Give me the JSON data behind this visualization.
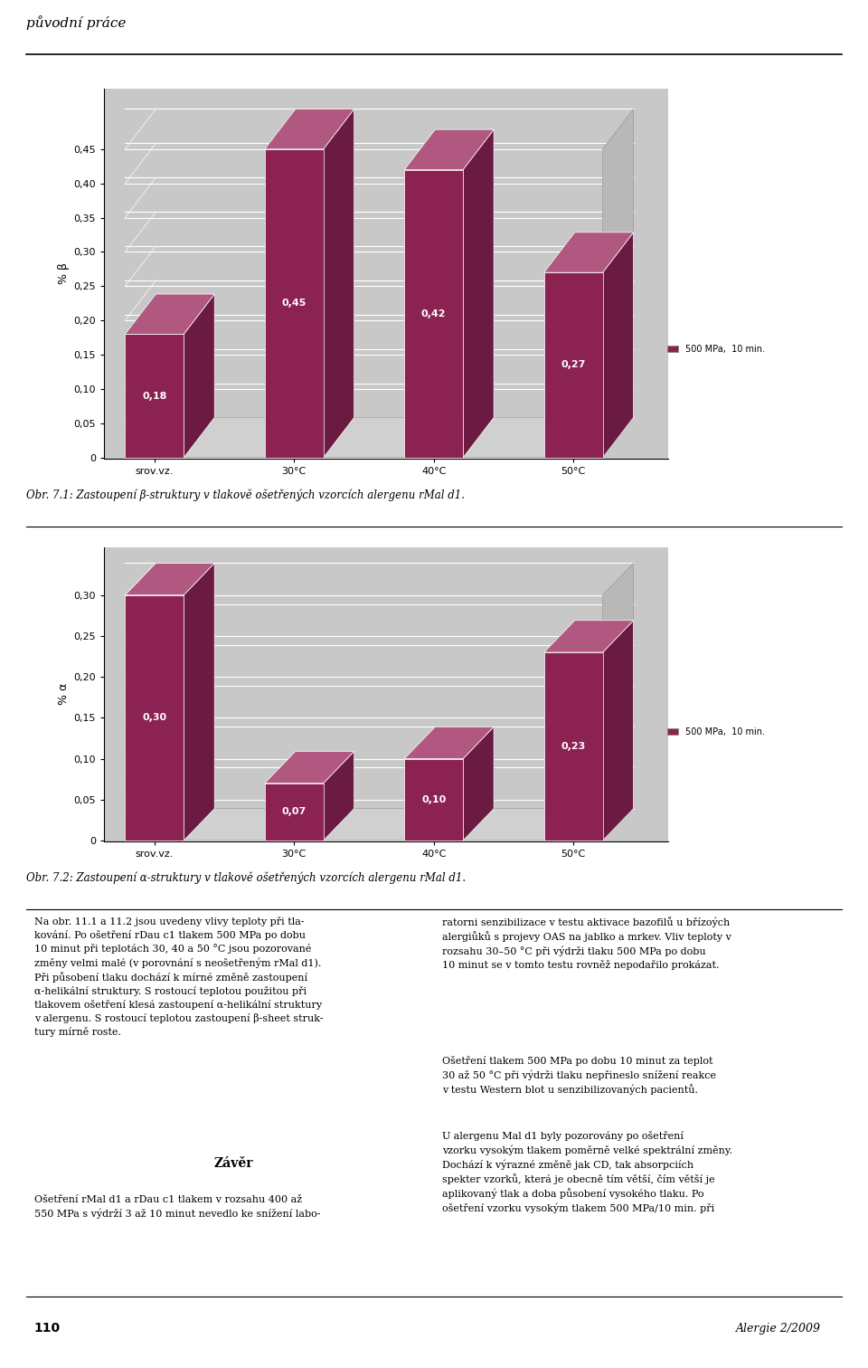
{
  "chart1": {
    "ylabel": "% β",
    "values": [
      0.18,
      0.45,
      0.42,
      0.27
    ],
    "categories": [
      "srov.vz.",
      "30°C",
      "40°C",
      "50°C"
    ],
    "ylim_max": 0.45,
    "yticks": [
      0,
      0.05,
      0.1,
      0.15,
      0.2,
      0.25,
      0.3,
      0.35,
      0.4,
      0.45
    ],
    "caption": "Obr. 7.1: Zastoupení β-struktury v tlakově ošetřených vzorcích alergenu rMal d1."
  },
  "chart2": {
    "ylabel": "% α",
    "values": [
      0.3,
      0.07,
      0.1,
      0.23
    ],
    "categories": [
      "srov.vz.",
      "30°C",
      "40°C",
      "50°C"
    ],
    "ylim_max": 0.3,
    "yticks": [
      0,
      0.05,
      0.1,
      0.15,
      0.2,
      0.25,
      0.3
    ],
    "caption": "Obr. 7.2: Zastoupení α-struktury v tlakově ošetřených vzorcích alergenu rMal d1."
  },
  "bar_color_front": "#8B2252",
  "bar_color_top": "#B05880",
  "bar_color_side": "#6B1A42",
  "wall_color": "#C8C8C8",
  "grid_line_color": "#AAAAAA",
  "legend_label": "500 MPa,  10 min.",
  "header_text": "původní práce",
  "footer_page": "110",
  "footer_journal": "Alergie 2/2009",
  "text_left1": "Na obr. 11.1 a 11.2 jsou uvedeny vlivy teploty při tla-\nkování. Po ošetření rDau c1 tlakem 500 MPa po dobu\n10 minut při teplotách 30, 40 a 50 °C jsou pozorované\nzměny velmi malé (v porovnání s neošetřeným rMal d1).\nPři působení tlaku dochází k mírné změně zastoupení\nα-helikální struktury. S rostoucí teplotou použitou při\ntlakovem ošetření klesá zastoupení α-helikální struktury\nv alergenu. S rostoucí teplotou zastoupení β-sheet struk-\ntury mírně roste.",
  "zaver_title": "Závěr",
  "zaver_text": "Ošetření rMal d1 a rDau c1 tlakem v rozsahu 400 až\n550 MPa s výdrží 3 až 10 minut nevedlo ke snížení labo-",
  "text_right1": "ratorni senzibilizace v testu aktivace bazofilů u břízoých\nalergiůků s projevy OAS na jablko a mrkev. Vliv teploty v\nrozsahu 30–50 °C při výdrži tlaku 500 MPa po dobu\n10 minut se v tomto testu rovněž nepodařilo prokázat.",
  "text_right2": "Ošetření tlakem 500 MPa po dobu 10 minut za teplot\n30 až 50 °C při výdrži tlaku nepřineslo snížení reakce\nv testu Western blot u senzibilizovaných pacientů.",
  "text_right3": "U alergenu Mal d1 byly pozorovány po ošetření\nvzorku vysokým tlakem poměrně velké spektrální změny.\nDochází k výrazné změně jak CD, tak absorpciích\nspekter vzorků, která je obecně tím větší, čím větší je\naplikovaný tlak a doba působení vysokého tlaku. Po\nošetření vzorku vysokým tlakem 500 MPa/10 min. při"
}
